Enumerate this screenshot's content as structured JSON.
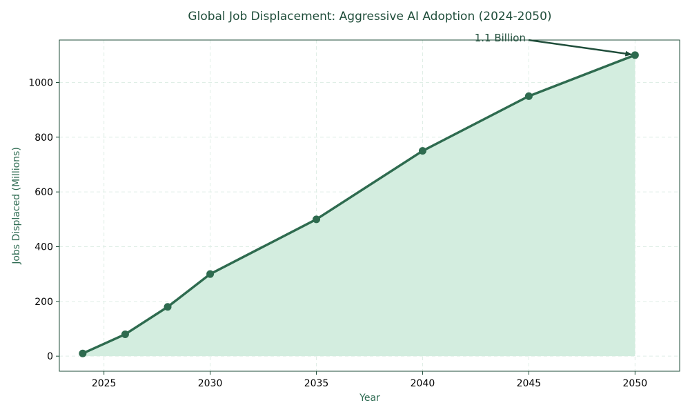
{
  "chart_data": {
    "type": "area",
    "title": "Global Job Displacement: Aggressive AI Adoption (2024-2050)",
    "xlabel": "Year",
    "ylabel": "Jobs Displaced (Millions)",
    "x": [
      2024,
      2026,
      2028,
      2030,
      2035,
      2040,
      2045,
      2050
    ],
    "series": [
      {
        "values": [
          10,
          80,
          180,
          300,
          500,
          750,
          950,
          1100
        ]
      }
    ],
    "xlim": [
      2022.9,
      2052.1
    ],
    "ylim": [
      -55,
      1155
    ],
    "x_ticks": [
      2025,
      2030,
      2035,
      2040,
      2045,
      2050
    ],
    "y_ticks": [
      0,
      200,
      400,
      600,
      800,
      1000
    ],
    "x_tick_labels": [
      "2025",
      "2030",
      "2035",
      "2040",
      "2045",
      "2050"
    ],
    "y_tick_labels": [
      "0",
      "200",
      "400",
      "600",
      "800",
      "1000"
    ],
    "grid": true,
    "annotation": {
      "text": "1.1 Billion",
      "x": 2050,
      "y": 1100
    },
    "colors": {
      "line": "#2e6b4f",
      "fill": "#d3eddf",
      "marker": "#2e6b4f",
      "frame": "#1f4d3a",
      "grid": "#dfeee6",
      "annotation_arrow": "#1f4d3a"
    }
  }
}
